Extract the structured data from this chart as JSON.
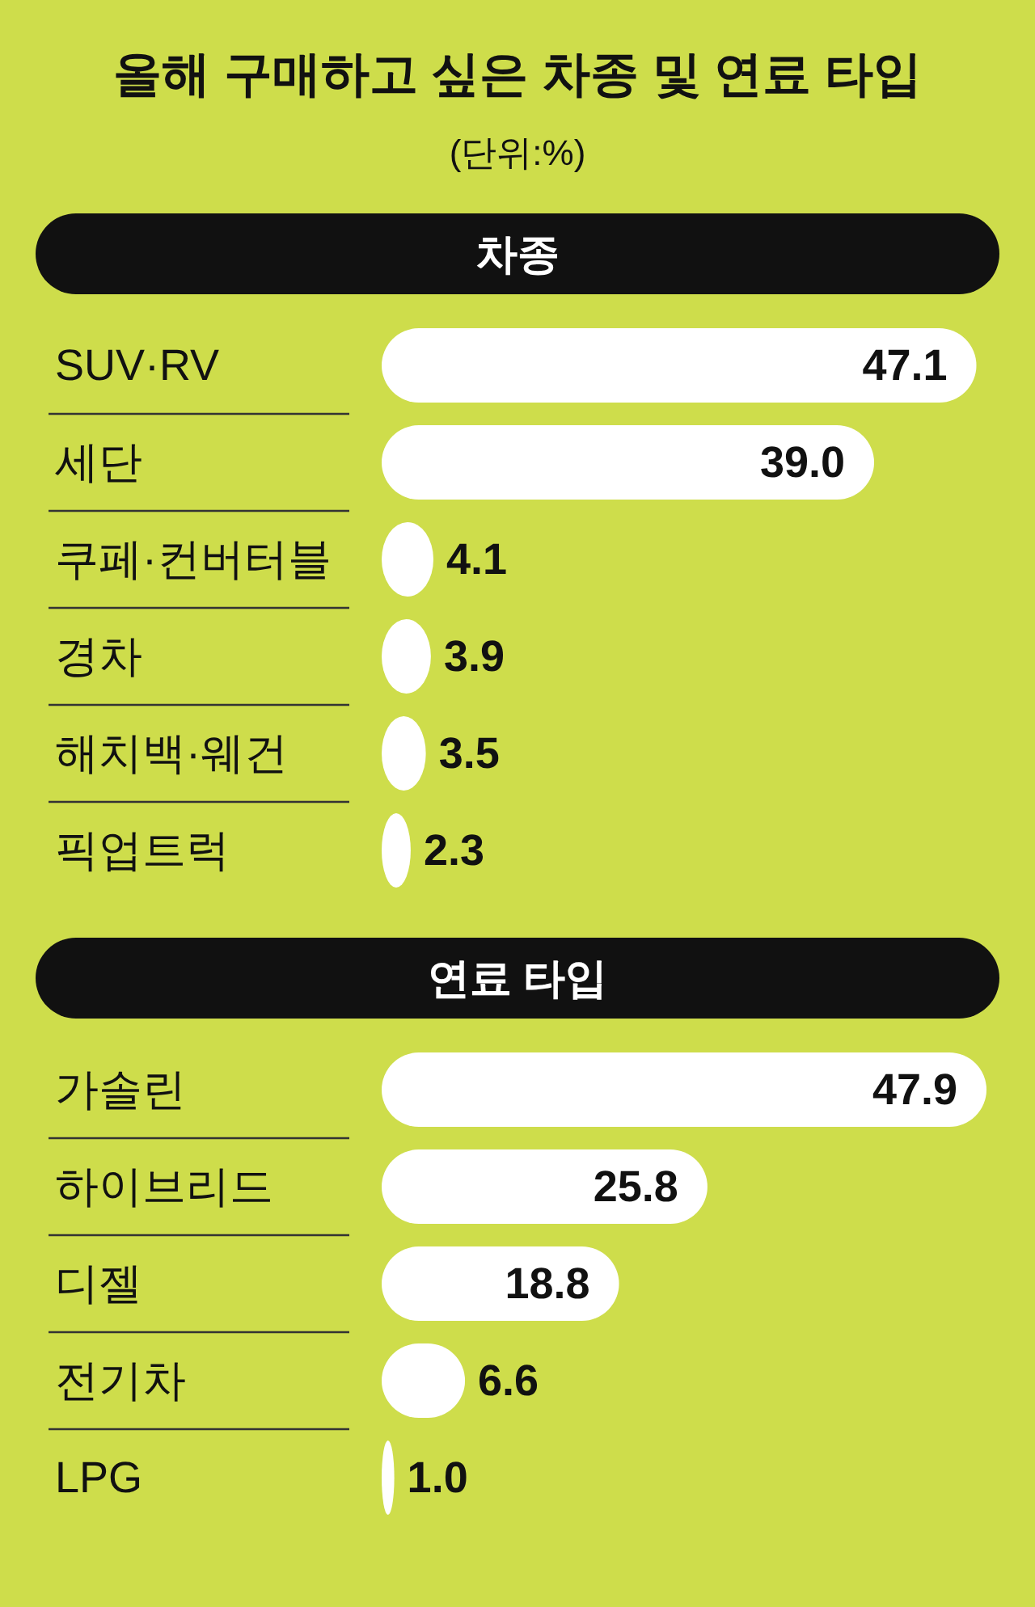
{
  "chart_data": [
    {
      "type": "other",
      "title": "올해 구매하고 싶은 차종 및 연료 타입",
      "subtitle": "(단위:%)"
    },
    {
      "type": "bar",
      "orientation": "horizontal",
      "title": "차종",
      "categories": [
        "SUV·RV",
        "세단",
        "쿠페·컨버터블",
        "경차",
        "해치백·웨건",
        "픽업트럭"
      ],
      "values": [
        47.1,
        39.0,
        4.1,
        3.9,
        3.5,
        2.3
      ],
      "value_labels": [
        "47.1",
        "39.0",
        "4.1",
        "3.9",
        "3.5",
        "2.3"
      ],
      "color": "#ffffff"
    },
    {
      "type": "bar",
      "orientation": "horizontal",
      "title": "연료 타입",
      "categories": [
        "가솔린",
        "하이브리드",
        "디젤",
        "전기차",
        "LPG"
      ],
      "values": [
        47.9,
        25.8,
        18.8,
        6.6,
        1.0
      ],
      "value_labels": [
        "47.9",
        "25.8",
        "18.8",
        "6.6",
        "1.0"
      ],
      "color": "#ffffff"
    }
  ]
}
